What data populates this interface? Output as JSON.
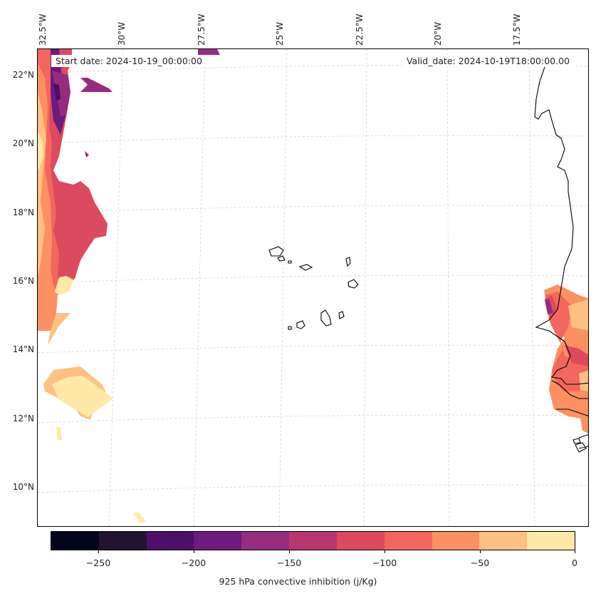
{
  "map": {
    "title_left": "Start date: 2024-10-19_00:00:00",
    "title_right": "Valid_date: 2024-10-19T18:00:00.00",
    "lon_labels": [
      "32.5°W",
      "30°W",
      "27.5°W",
      "25°W",
      "22.5°W",
      "20°W",
      "17.5°W"
    ],
    "lat_labels": [
      "22°N",
      "20°N",
      "18°N",
      "16°N",
      "14°N",
      "12°N",
      "10°N"
    ],
    "variable": "925 hPa convective inhibition",
    "units": "j/Kg"
  },
  "colorbar": {
    "label": "925 hPa convective inhibition (j/Kg)",
    "ticks": [
      "−250",
      "−200",
      "−150",
      "−100",
      "−50",
      "0"
    ],
    "levels": [
      -275,
      -250,
      -225,
      -200,
      -175,
      -150,
      -125,
      -100,
      -75,
      -50,
      -25,
      0
    ],
    "colors": [
      "#03051a",
      "#221331",
      "#4c0f6a",
      "#6e1a7e",
      "#962c80",
      "#b9376f",
      "#dc4a5f",
      "#f2675d",
      "#fb9063",
      "#fec083",
      "#fde8a7"
    ]
  },
  "colors": {
    "coastline": "#000000",
    "grid": "#cccccc"
  }
}
